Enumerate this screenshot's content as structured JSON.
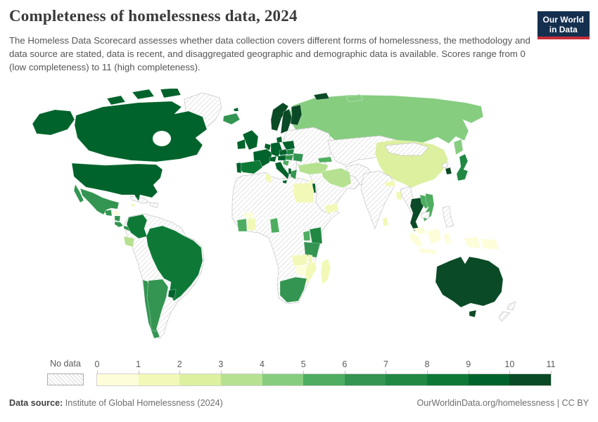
{
  "header": {
    "title": "Completeness of homelessness data, 2024",
    "subtitle": "The Homeless Data Scorecard assesses whether data collection covers different forms of homelessness, the methodology and data source are stated, data is recent, and disaggregated geographic and demographic data is available. Scores range from 0 (low completeness) to 11 (high completeness).",
    "logo_line1": "Our World",
    "logo_line2": "in Data",
    "logo_bg_color": "#15304f",
    "logo_stripe_color": "#c62e39"
  },
  "legend": {
    "no_data_label": "No data",
    "tick_labels": [
      "0",
      "1",
      "2",
      "3",
      "4",
      "5",
      "6",
      "7",
      "8",
      "9",
      "10",
      "11"
    ],
    "colors": [
      "#fdfdd9",
      "#f2f9b7",
      "#dcf0a0",
      "#b5e191",
      "#86cd80",
      "#4ead60",
      "#339551",
      "#218844",
      "#0e7937",
      "#00632b",
      "#0a4a26"
    ],
    "hatch_line_color": "#d7d7d7"
  },
  "footer": {
    "source_label": "Data source:",
    "source_text": "Institute of Global Homelessness (2024)",
    "attribution": "OurWorldinData.org/homelessness | CC BY"
  },
  "chart_data": {
    "type": "choropleth",
    "title": "Completeness of homelessness data, 2024",
    "unit": "Homeless Data Scorecard score",
    "range": [
      0,
      11
    ],
    "legend_bins": 11,
    "countries": {
      "United States": 10,
      "Canada": 10,
      "Mexico": 7,
      "Guatemala": 7,
      "Honduras": 1,
      "Nicaragua": 7,
      "Costa Rica": 7,
      "Panama": 7,
      "Jamaica": 2,
      "Colombia": 9,
      "Ecuador": 4,
      "Brazil": 9,
      "Chile": 7,
      "Argentina": 7,
      "Uruguay": 10,
      "Iceland": 7,
      "Norway": 11,
      "Sweden": 11,
      "Finland": 11,
      "Denmark": 10,
      "United Kingdom": 10,
      "Ireland": 10,
      "France": 10,
      "Spain": 9,
      "Portugal": 10,
      "Germany": 10,
      "Netherlands": 10,
      "Switzerland": 10,
      "Austria": 10,
      "Czechia": 10,
      "Poland": 10,
      "Italy": 10,
      "Slovakia": 8,
      "Hungary": 7,
      "Croatia": 6,
      "Romania": 7,
      "Greece": 7,
      "Albania": 10,
      "Russia": 5,
      "Georgia": 6,
      "Turkey": 4,
      "Kyrgyzstan": 4,
      "Iran": 4,
      "Israel": 10,
      "Cyprus": 2,
      "Egypt": 2,
      "Tunisia": 2,
      "Yemen": 2,
      "Ghana": 2,
      "Côte d'Ivoire": 6,
      "Burkina Faso": 1,
      "Cameroon": 6,
      "Kenya": 8,
      "Uganda": 6,
      "Tanzania": 7,
      "Zambia": 2,
      "Malawi": 2,
      "Zimbabwe": 1,
      "Mozambique": 2,
      "Madagascar": 2,
      "South Africa": 7,
      "China": 3,
      "South Korea": 11,
      "Japan": 8,
      "Nepal": 2,
      "Bangladesh": 2,
      "Sri Lanka": 2,
      "Thailand": 11,
      "Laos": 6,
      "Vietnam": 6,
      "Malaysia": 1,
      "Indonesia": 1,
      "Papua New Guinea": 1,
      "Australia": 11
    },
    "no_data": [
      "Greenland",
      "Cuba",
      "Haiti",
      "Dominican Republic",
      "Venezuela",
      "Guyana",
      "Suriname",
      "Peru",
      "Bolivia",
      "Paraguay",
      "Morocco",
      "Algeria",
      "Libya",
      "Mali",
      "Niger",
      "Chad",
      "Sudan",
      "Ethiopia",
      "Somalia",
      "Nigeria",
      "Democratic Republic of Congo",
      "Angola",
      "Namibia",
      "Botswana",
      "Saudi Arabia",
      "Iraq",
      "Syria",
      "Jordan",
      "Oman",
      "Ukraine",
      "Belarus",
      "Lithuania",
      "Latvia",
      "Estonia",
      "Serbia",
      "Bulgaria",
      "Bosnia and Herzegovina",
      "Kazakhstan",
      "Uzbekistan",
      "Turkmenistan",
      "Afghanistan",
      "Pakistan",
      "India",
      "Myanmar",
      "Cambodia",
      "Mongolia",
      "North Korea",
      "Philippines",
      "New Zealand"
    ]
  }
}
